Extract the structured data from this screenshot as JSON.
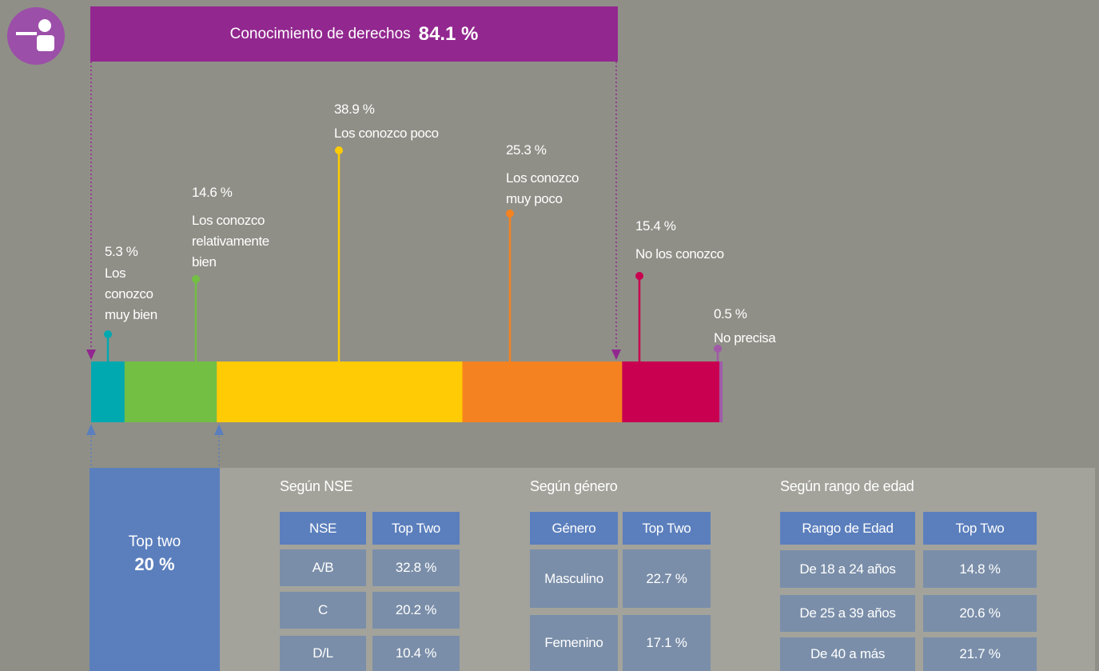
{
  "header": {
    "label": "Conocimiento de derechos",
    "value_label": "84.1 %"
  },
  "chart_data": {
    "type": "stacked_bar",
    "categories": [
      "Los conozco muy bien",
      "Los conozco relativamente bien",
      "Los conozco poco",
      "Los conozco muy poco",
      "No los conozco",
      "No precisa"
    ],
    "values": [
      5.3,
      14.6,
      38.9,
      25.3,
      15.4,
      0.5
    ],
    "value_labels": [
      "5.3 %",
      "14.6 %",
      "38.9 %",
      "25.3 %",
      "15.4 %",
      "0.5 %"
    ],
    "colors": [
      "#00a9b0",
      "#72bf44",
      "#ffcb05",
      "#f58220",
      "#c8004f",
      "#a05aa8"
    ]
  },
  "top_two": {
    "label": "Top two",
    "value_label": "20 %"
  },
  "tables": [
    {
      "title": "Según NSE",
      "columns": [
        "NSE",
        "Top Two"
      ],
      "rows": [
        [
          "A/B",
          "32.8 %"
        ],
        [
          "C",
          "20.2 %"
        ],
        [
          "D/L",
          "10.4 %"
        ]
      ]
    },
    {
      "title": "Según género",
      "columns": [
        "Género",
        "Top Two"
      ],
      "rows": [
        [
          "Masculino",
          "22.7 %"
        ],
        [
          "Femenino",
          "17.1 %"
        ]
      ]
    },
    {
      "title": "Según rango de edad",
      "columns": [
        "Rango de Edad",
        "Top Two"
      ],
      "rows": [
        [
          "De 18 a 24 años",
          "14.8 %"
        ],
        [
          "De 25 a 39 años",
          "20.6 %"
        ],
        [
          "De 40 a más",
          "21.7 %"
        ]
      ]
    }
  ]
}
